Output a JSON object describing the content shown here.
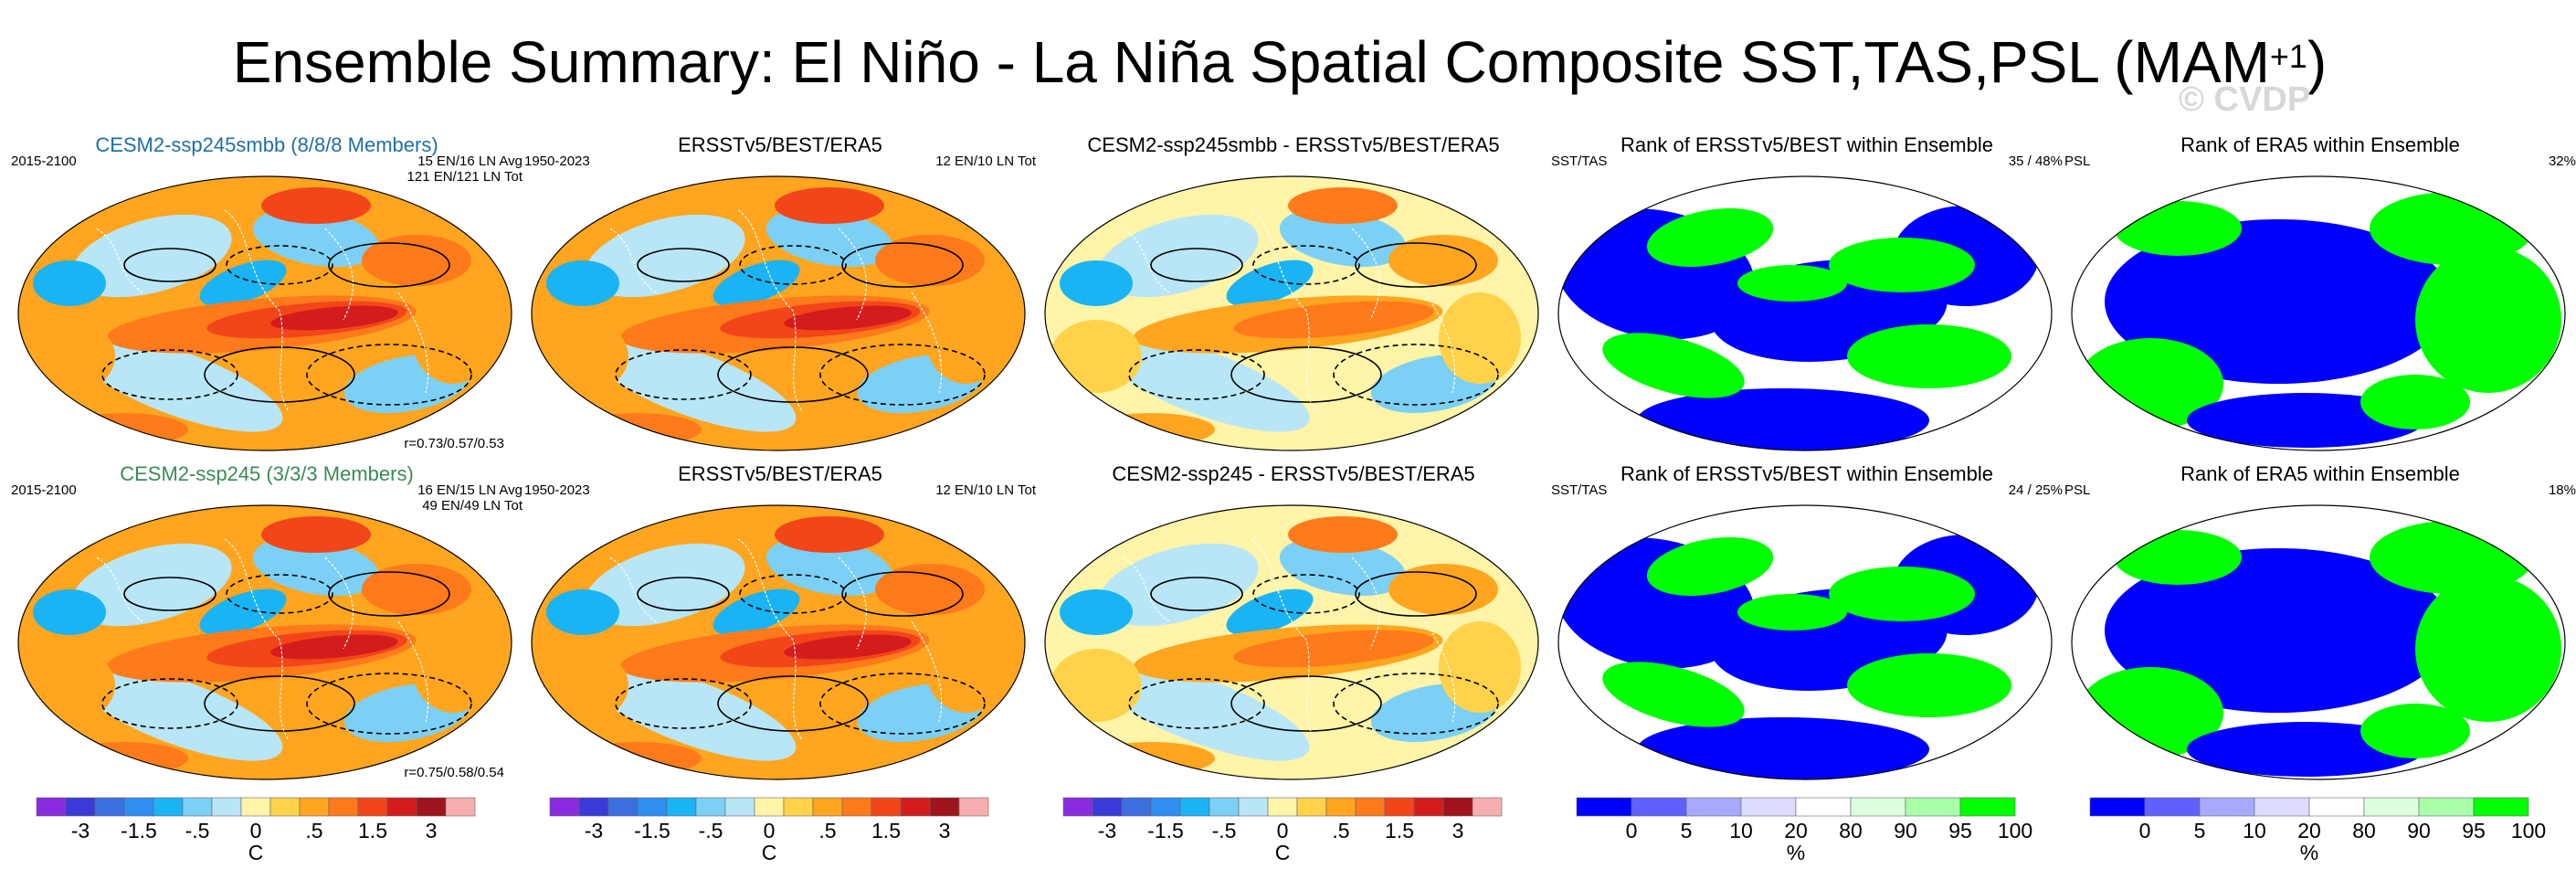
{
  "title": "Ensemble Summary: El Niño - La Niña Spatial Composite SST,TAS,PSL (MAM",
  "title_superscript": "+1",
  "title_close": ")",
  "watermark": "© CVDP",
  "colors": {
    "text_blue": "#1e6fa8",
    "text_green": "#3a8a55",
    "land_blue": "#0000ff",
    "land_green": "#00ff00"
  },
  "chart_data": [
    {
      "type": "heatmap",
      "panel": "row1-col1",
      "title": "CESM2-ssp245smbb (8/8/8 Members)",
      "left_label": "2015-2100",
      "right_label_1": "15 EN/16 LN Avg",
      "right_label_2": "121 EN/121 LN Tot",
      "corr_label": "r=0.73/0.57/0.53"
    },
    {
      "type": "heatmap",
      "panel": "row1-col2",
      "title": "ERSSTv5/BEST/ERA5",
      "left_label": "1950-2023",
      "right_label_1": "12 EN/10 LN Tot"
    },
    {
      "type": "heatmap",
      "panel": "row1-col3",
      "title": "CESM2-ssp245smbb - ERSSTv5/BEST/ERA5"
    },
    {
      "type": "heatmap",
      "panel": "row1-col4",
      "title": "Rank of ERSSTv5/BEST within Ensemble",
      "left_label": "SST/TAS",
      "right_label_1": "35 / 48%"
    },
    {
      "type": "heatmap",
      "panel": "row1-col5",
      "title": "Rank of ERA5 within Ensemble",
      "left_label": "PSL",
      "right_label_1": "32%"
    },
    {
      "type": "heatmap",
      "panel": "row2-col1",
      "title": "CESM2-ssp245 (3/3/3 Members)",
      "left_label": "2015-2100",
      "right_label_1": "16 EN/15 LN Avg",
      "right_label_2": "49 EN/49 LN Tot",
      "corr_label": "r=0.75/0.58/0.54"
    },
    {
      "type": "heatmap",
      "panel": "row2-col2",
      "title": "ERSSTv5/BEST/ERA5",
      "left_label": "1950-2023",
      "right_label_1": "12 EN/10 LN Tot"
    },
    {
      "type": "heatmap",
      "panel": "row2-col3",
      "title": "CESM2-ssp245 - ERSSTv5/BEST/ERA5"
    },
    {
      "type": "heatmap",
      "panel": "row2-col4",
      "title": "Rank of ERSSTv5/BEST within Ensemble",
      "left_label": "SST/TAS",
      "right_label_1": "24 / 25%"
    },
    {
      "type": "heatmap",
      "panel": "row2-col5",
      "title": "Rank of ERA5 within Ensemble",
      "left_label": "PSL",
      "right_label_1": "18%"
    }
  ],
  "colorbars": {
    "temp": {
      "unit": "C",
      "labels": [
        "-3",
        "-1.5",
        "-.5",
        "0",
        ".5",
        "1.5",
        "3"
      ],
      "colors": [
        "#8a2be2",
        "#3a3ad8",
        "#3b6fe0",
        "#2f8ff0",
        "#1ab4f5",
        "#7cd0f5",
        "#b8e6f7",
        "#fff4a8",
        "#ffd24a",
        "#ffa51f",
        "#ff7a1a",
        "#f2461a",
        "#d41c1c",
        "#a0141e",
        "#f7aeb0"
      ]
    },
    "rank": {
      "unit": "%",
      "labels": [
        "0",
        "5",
        "10",
        "20",
        "80",
        "90",
        "95",
        "100"
      ],
      "colors": [
        "#0000ff",
        "#6060ff",
        "#a8a8ff",
        "#dcdcff",
        "#ffffff",
        "#dcffdc",
        "#a8ffa8",
        "#00ff00"
      ]
    }
  }
}
